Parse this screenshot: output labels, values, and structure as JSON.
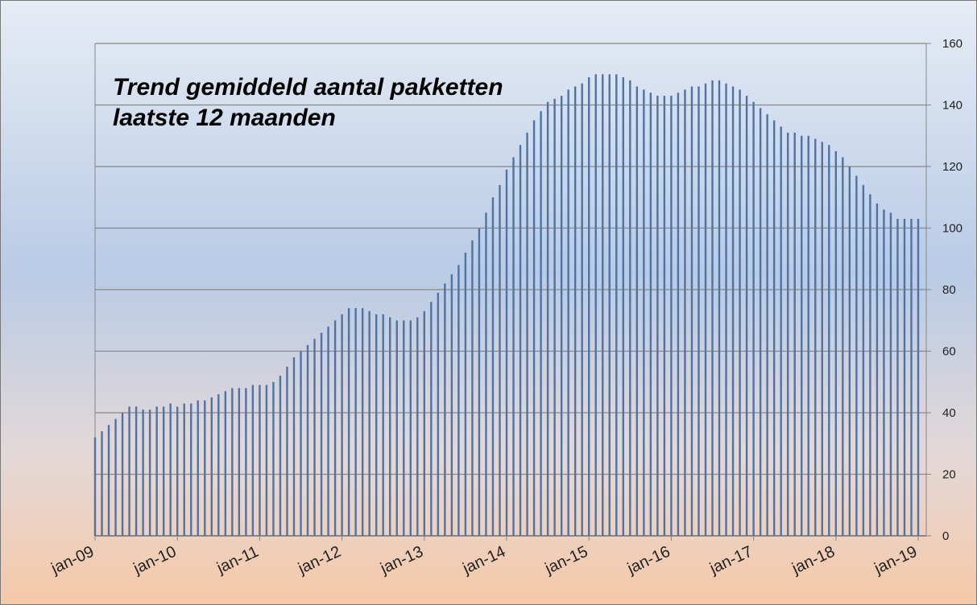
{
  "chart_data": {
    "type": "bar",
    "title": "Trend gemiddeld aantal pakketten laatste 12 maanden",
    "categories": [
      "jan-09",
      null,
      null,
      null,
      null,
      null,
      null,
      null,
      null,
      null,
      null,
      null,
      "jan-10",
      null,
      null,
      null,
      null,
      null,
      null,
      null,
      null,
      null,
      null,
      null,
      "jan-11",
      null,
      null,
      null,
      null,
      null,
      null,
      null,
      null,
      null,
      null,
      null,
      "jan-12",
      null,
      null,
      null,
      null,
      null,
      null,
      null,
      null,
      null,
      null,
      null,
      "jan-13",
      null,
      null,
      null,
      null,
      null,
      null,
      null,
      null,
      null,
      null,
      null,
      "jan-14",
      null,
      null,
      null,
      null,
      null,
      null,
      null,
      null,
      null,
      null,
      null,
      "jan-15",
      null,
      null,
      null,
      null,
      null,
      null,
      null,
      null,
      null,
      null,
      null,
      "jan-16",
      null,
      null,
      null,
      null,
      null,
      null,
      null,
      null,
      null,
      null,
      null,
      "jan-17",
      null,
      null,
      null,
      null,
      null,
      null,
      null,
      null,
      null,
      null,
      null,
      "jan-18",
      null,
      null,
      null,
      null,
      null,
      null,
      null,
      null,
      null,
      null,
      null,
      "jan-19"
    ],
    "values": [
      32,
      34,
      36,
      38,
      40,
      42,
      42,
      41,
      41,
      42,
      42,
      43,
      42,
      43,
      43,
      44,
      44,
      45,
      46,
      47,
      48,
      48,
      48,
      49,
      49,
      49,
      50,
      52,
      55,
      58,
      60,
      62,
      64,
      66,
      68,
      70,
      72,
      74,
      74,
      74,
      73,
      72,
      72,
      71,
      70,
      70,
      70,
      71,
      73,
      76,
      79,
      82,
      85,
      88,
      92,
      96,
      100,
      105,
      110,
      114,
      119,
      123,
      127,
      131,
      135,
      138,
      141,
      142,
      143,
      145,
      146,
      147,
      149,
      150,
      150,
      150,
      150,
      149,
      148,
      146,
      145,
      144,
      143,
      143,
      143,
      144,
      145,
      146,
      146,
      147,
      148,
      148,
      147,
      146,
      145,
      143,
      141,
      139,
      137,
      135,
      133,
      131,
      131,
      130,
      130,
      129,
      128,
      127,
      125,
      123,
      120,
      117,
      114,
      111,
      108,
      106,
      105,
      103,
      103,
      103,
      103
    ],
    "color": "#4f73a3",
    "ylim": [
      0,
      160
    ],
    "yticks": [
      0,
      20,
      40,
      60,
      80,
      100,
      120,
      140,
      160
    ],
    "grid": true
  }
}
